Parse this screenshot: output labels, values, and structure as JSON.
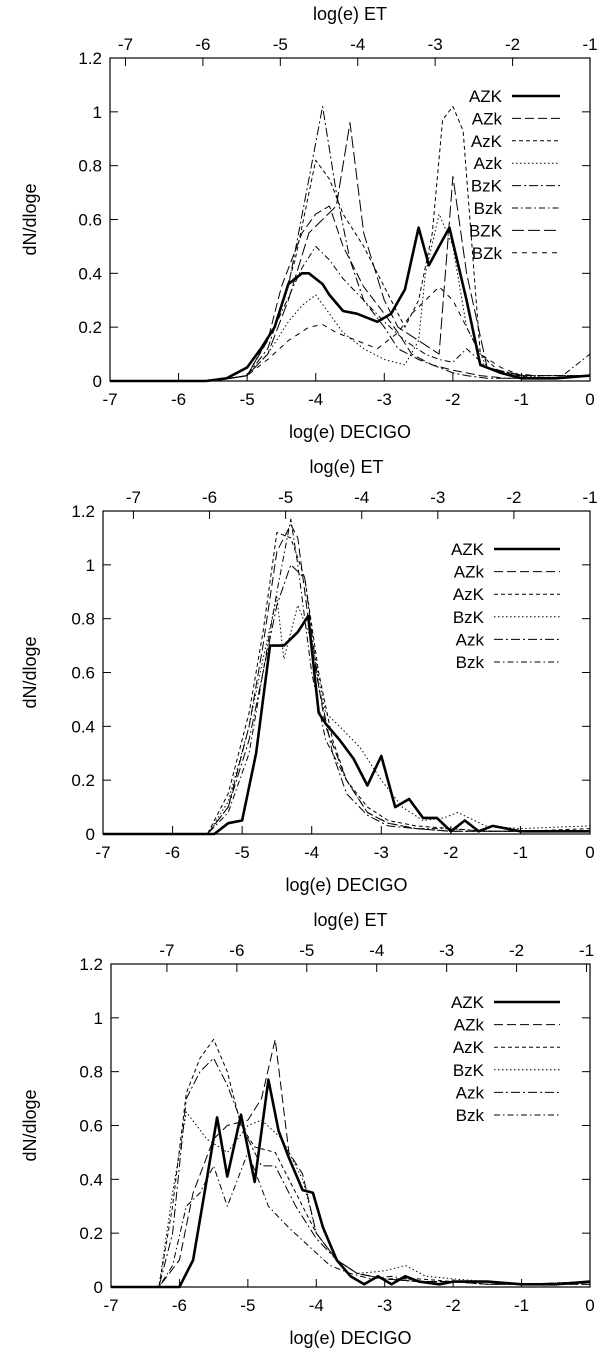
{
  "chart_data": [
    {
      "type": "line",
      "xlabel": "log(e) DECIGO",
      "x2label": "log(e) ET",
      "ylabel": "dN/dloge",
      "xlim": [
        -7,
        0
      ],
      "x2lim": [
        -7.2,
        -1
      ],
      "ylim": [
        0,
        1.2
      ],
      "xticks": [
        "-7",
        "-6",
        "-5",
        "-4",
        "-3",
        "-2",
        "-1",
        "0"
      ],
      "x2ticks": [
        "-7",
        "-6",
        "-5",
        "-4",
        "-3",
        "-2",
        "-1"
      ],
      "yticks": [
        "0",
        "0.2",
        "0.4",
        "0.6",
        "0.8",
        "1",
        "1.2"
      ],
      "grid": false,
      "legend": "top-right",
      "series": [
        {
          "name": "AZK",
          "x": [
            -7,
            -5.6,
            -5.3,
            -5.0,
            -4.8,
            -4.6,
            -4.4,
            -4.2,
            -4.1,
            -3.9,
            -3.8,
            -3.6,
            -3.4,
            -3.1,
            -2.9,
            -2.7,
            -2.5,
            -2.35,
            -2.2,
            -2.05,
            -1.8,
            -1.6,
            -1.3,
            -1.0,
            -0.5,
            0
          ],
          "y": [
            0,
            0,
            0.01,
            0.05,
            0.12,
            0.2,
            0.36,
            0.4,
            0.4,
            0.36,
            0.32,
            0.26,
            0.25,
            0.22,
            0.25,
            0.34,
            0.57,
            0.43,
            0.5,
            0.57,
            0.3,
            0.06,
            0.03,
            0.01,
            0.01,
            0.02
          ]
        },
        {
          "name": "AZk",
          "x": [
            -7,
            -5.5,
            -5.0,
            -4.7,
            -4.5,
            -4.2,
            -4.0,
            -3.8,
            -3.6,
            -3.3,
            -3.0,
            -2.8,
            -2.6,
            -2.3,
            -2.0,
            -1.6,
            -1.2,
            -0.5,
            0
          ],
          "y": [
            0,
            0,
            0.02,
            0.15,
            0.35,
            0.55,
            0.62,
            0.65,
            0.5,
            0.35,
            0.25,
            0.18,
            0.1,
            0.06,
            0.04,
            0.02,
            0.01,
            0.01,
            0.02
          ]
        },
        {
          "name": "AzK",
          "x": [
            -7,
            -5.5,
            -5.0,
            -4.6,
            -4.3,
            -4.0,
            -3.8,
            -3.6,
            -3.3,
            -3.0,
            -2.7,
            -2.5,
            -2.3,
            -2.15,
            -2.0,
            -1.85,
            -1.6,
            -1.3,
            -0.8,
            0
          ],
          "y": [
            0,
            0,
            0.02,
            0.2,
            0.45,
            0.82,
            0.75,
            0.62,
            0.5,
            0.35,
            0.2,
            0.3,
            0.55,
            0.97,
            1.02,
            0.93,
            0.1,
            0.03,
            0.01,
            0.02
          ]
        },
        {
          "name": "Azk",
          "x": [
            -7,
            -5.5,
            -5.0,
            -4.7,
            -4.4,
            -4.2,
            -4.0,
            -3.8,
            -3.6,
            -3.3,
            -3.0,
            -2.7,
            -2.5,
            -2.4,
            -2.2,
            -2.0,
            -1.8,
            -1.5,
            -1.0,
            -0.5,
            0
          ],
          "y": [
            0,
            0,
            0.02,
            0.1,
            0.22,
            0.28,
            0.32,
            0.25,
            0.18,
            0.12,
            0.08,
            0.06,
            0.15,
            0.4,
            0.62,
            0.5,
            0.2,
            0.05,
            0.02,
            0.01,
            0.02
          ]
        },
        {
          "name": "BzK",
          "x": [
            -7,
            -5.5,
            -5.0,
            -4.7,
            -4.4,
            -4.1,
            -3.9,
            -3.7,
            -3.5,
            -3.3,
            -3.0,
            -2.8,
            -2.5,
            -2.2,
            -2.0,
            -1.8,
            -1.5,
            -1.0,
            -0.5,
            0
          ],
          "y": [
            0,
            0,
            0.02,
            0.12,
            0.35,
            0.75,
            1.02,
            0.7,
            0.45,
            0.3,
            0.2,
            0.12,
            0.08,
            0.05,
            0.03,
            0.02,
            0.01,
            0.01,
            0.01,
            0.02
          ]
        },
        {
          "name": "Bzk",
          "x": [
            -7,
            -5.5,
            -5.0,
            -4.6,
            -4.2,
            -4.0,
            -3.8,
            -3.6,
            -3.3,
            -3.0,
            -2.7,
            -2.4,
            -2.2,
            -2.0,
            -1.8,
            -1.5,
            -1.2,
            -0.8,
            -0.4,
            0
          ],
          "y": [
            0,
            0,
            0.02,
            0.2,
            0.42,
            0.5,
            0.45,
            0.38,
            0.3,
            0.22,
            0.15,
            0.1,
            0.08,
            0.07,
            0.12,
            0.05,
            0.03,
            0.02,
            0.02,
            0.1
          ]
        },
        {
          "name": "BZK",
          "x": [
            -7,
            -5.5,
            -5.0,
            -4.7,
            -4.4,
            -4.1,
            -3.9,
            -3.7,
            -3.5,
            -3.3,
            -3.0,
            -2.8,
            -2.5,
            -2.2,
            -2.0,
            -1.8,
            -1.5,
            -1.0,
            0
          ],
          "y": [
            0,
            0,
            0.02,
            0.1,
            0.3,
            0.55,
            0.6,
            0.65,
            0.96,
            0.55,
            0.3,
            0.2,
            0.15,
            0.1,
            0.76,
            0.4,
            0.05,
            0.02,
            0.02
          ]
        },
        {
          "name": "BZk",
          "x": [
            -7,
            -5.5,
            -5.0,
            -4.7,
            -4.4,
            -4.1,
            -3.9,
            -3.7,
            -3.4,
            -3.1,
            -2.8,
            -2.6,
            -2.4,
            -2.2,
            -2.0,
            -1.8,
            -1.6,
            -1.3,
            -1.0,
            0
          ],
          "y": [
            0,
            0,
            0.02,
            0.08,
            0.15,
            0.2,
            0.21,
            0.18,
            0.15,
            0.12,
            0.18,
            0.25,
            0.3,
            0.35,
            0.3,
            0.2,
            0.1,
            0.05,
            0.02,
            0.02
          ]
        }
      ]
    },
    {
      "type": "line",
      "xlabel": "log(e) DECIGO",
      "x2label": "log(e) ET",
      "ylabel": "dN/dloge",
      "xlim": [
        -7,
        0
      ],
      "x2lim": [
        -7.4,
        -1
      ],
      "ylim": [
        0,
        1.2
      ],
      "xticks": [
        "-7",
        "-6",
        "-5",
        "-4",
        "-3",
        "-2",
        "-1",
        "0"
      ],
      "x2ticks": [
        "-7",
        "-6",
        "-5",
        "-4",
        "-3",
        "-2",
        "-1"
      ],
      "yticks": [
        "0",
        "0.2",
        "0.4",
        "0.6",
        "0.8",
        "1",
        "1.2"
      ],
      "grid": false,
      "legend": "top-right",
      "series": [
        {
          "name": "AZK",
          "x": [
            -7,
            -5.4,
            -5.2,
            -5.0,
            -4.8,
            -4.6,
            -4.4,
            -4.2,
            -4.05,
            -3.9,
            -3.8,
            -3.6,
            -3.4,
            -3.2,
            -3.0,
            -2.8,
            -2.6,
            -2.4,
            -2.2,
            -2.0,
            -1.8,
            -1.6,
            -1.4,
            -1.0,
            -0.5,
            0
          ],
          "y": [
            0,
            0,
            0.04,
            0.05,
            0.3,
            0.7,
            0.7,
            0.75,
            0.81,
            0.45,
            0.41,
            0.35,
            0.28,
            0.18,
            0.29,
            0.1,
            0.13,
            0.06,
            0.06,
            0.01,
            0.05,
            0.01,
            0.03,
            0.01,
            0.01,
            0.01
          ]
        },
        {
          "name": "AZk",
          "x": [
            -7,
            -5.5,
            -5.2,
            -4.9,
            -4.7,
            -4.5,
            -4.3,
            -4.2,
            -4.0,
            -3.8,
            -3.5,
            -3.2,
            -2.9,
            -2.5,
            -2.0,
            -1.5,
            -1.0,
            0
          ],
          "y": [
            0,
            0,
            0.1,
            0.4,
            0.7,
            1.05,
            1.15,
            1.1,
            0.7,
            0.4,
            0.2,
            0.08,
            0.04,
            0.02,
            0.01,
            0.01,
            0.01,
            0.01
          ]
        },
        {
          "name": "AzK",
          "x": [
            -7,
            -5.5,
            -5.2,
            -4.9,
            -4.7,
            -4.5,
            -4.3,
            -4.1,
            -3.9,
            -3.7,
            -3.5,
            -3.2,
            -2.9,
            -2.5,
            -2.0,
            -1.5,
            -1.0,
            0
          ],
          "y": [
            0,
            0,
            0.15,
            0.45,
            0.75,
            1.12,
            1.1,
            0.95,
            0.6,
            0.35,
            0.2,
            0.1,
            0.05,
            0.03,
            0.02,
            0.01,
            0.01,
            0.02
          ]
        },
        {
          "name": "BzK",
          "x": [
            -7,
            -5.5,
            -5.2,
            -4.9,
            -4.7,
            -4.5,
            -4.4,
            -4.2,
            -4.0,
            -3.8,
            -3.6,
            -3.3,
            -3.0,
            -2.7,
            -2.4,
            -2.1,
            -1.9,
            -1.5,
            -1.0,
            0
          ],
          "y": [
            0,
            0,
            0.12,
            0.4,
            0.65,
            0.88,
            0.65,
            0.85,
            0.72,
            0.45,
            0.4,
            0.32,
            0.2,
            0.1,
            0.05,
            0.06,
            0.08,
            0.03,
            0.02,
            0.03
          ]
        },
        {
          "name": "Azk",
          "x": [
            -7,
            -5.5,
            -5.2,
            -4.9,
            -4.7,
            -4.5,
            -4.3,
            -4.1,
            -3.9,
            -3.7,
            -3.5,
            -3.2,
            -2.9,
            -2.5,
            -2.0,
            -1.5,
            -1.0,
            0
          ],
          "y": [
            0,
            0,
            0.1,
            0.35,
            0.6,
            0.85,
            1.0,
            0.95,
            0.55,
            0.3,
            0.15,
            0.07,
            0.03,
            0.02,
            0.01,
            0.01,
            0.01,
            0.01
          ]
        },
        {
          "name": "Bzk",
          "x": [
            -7,
            -5.5,
            -5.2,
            -4.9,
            -4.7,
            -4.5,
            -4.3,
            -4.2,
            -4.0,
            -3.8,
            -3.5,
            -3.2,
            -2.9,
            -2.5,
            -2.0,
            -1.5,
            -1.0,
            0
          ],
          "y": [
            0,
            0,
            0.08,
            0.3,
            0.6,
            0.9,
            1.17,
            1.0,
            0.6,
            0.35,
            0.2,
            0.08,
            0.04,
            0.02,
            0.02,
            0.01,
            0.01,
            0.01
          ]
        }
      ]
    },
    {
      "type": "line",
      "xlabel": "log(e) DECIGO",
      "x2label": "log(e) ET",
      "ylabel": "dN/dloge",
      "xlim": [
        -7,
        0
      ],
      "x2lim": [
        -7.8,
        -0.95
      ],
      "ylim": [
        0,
        1.2
      ],
      "xticks": [
        "-7",
        "-6",
        "-5",
        "-4",
        "-3",
        "-2",
        "-1",
        "0"
      ],
      "x2ticks": [
        "-7",
        "-6",
        "-5",
        "-4",
        "-3",
        "-2",
        "-1"
      ],
      "yticks": [
        "0",
        "0.2",
        "0.4",
        "0.6",
        "0.8",
        "1",
        "1.2"
      ],
      "grid": false,
      "legend": "top-right",
      "series": [
        {
          "name": "AZK",
          "x": [
            -7,
            -6.0,
            -5.8,
            -5.6,
            -5.45,
            -5.3,
            -5.1,
            -4.9,
            -4.7,
            -4.55,
            -4.4,
            -4.2,
            -4.05,
            -3.9,
            -3.7,
            -3.5,
            -3.3,
            -3.1,
            -2.9,
            -2.7,
            -2.5,
            -2.2,
            -2.0,
            -1.5,
            -1.0,
            -0.5,
            0
          ],
          "y": [
            0,
            0,
            0.1,
            0.4,
            0.63,
            0.41,
            0.64,
            0.39,
            0.77,
            0.58,
            0.48,
            0.36,
            0.35,
            0.22,
            0.1,
            0.04,
            0.01,
            0.04,
            0.01,
            0.04,
            0.02,
            0.01,
            0.02,
            0.02,
            0.01,
            0.01,
            0.02
          ]
        },
        {
          "name": "AZk",
          "x": [
            -7,
            -6.3,
            -6.0,
            -5.8,
            -5.5,
            -5.3,
            -5.0,
            -4.8,
            -4.6,
            -4.4,
            -4.2,
            -4.0,
            -3.7,
            -3.4,
            -3.0,
            -2.5,
            -2.0,
            -1.5,
            -1.0,
            0
          ],
          "y": [
            0,
            0,
            0.1,
            0.35,
            0.55,
            0.6,
            0.62,
            0.7,
            0.92,
            0.5,
            0.42,
            0.2,
            0.1,
            0.05,
            0.03,
            0.02,
            0.02,
            0.01,
            0.01,
            0.01
          ]
        },
        {
          "name": "AzK",
          "x": [
            -7,
            -6.3,
            -6.1,
            -5.9,
            -5.7,
            -5.5,
            -5.3,
            -5.1,
            -4.9,
            -4.6,
            -4.3,
            -4.0,
            -3.7,
            -3.4,
            -3.0,
            -2.5,
            -2.0,
            -1.5,
            -1.0,
            0
          ],
          "y": [
            0,
            0,
            0.3,
            0.72,
            0.85,
            0.92,
            0.8,
            0.6,
            0.52,
            0.5,
            0.35,
            0.2,
            0.1,
            0.05,
            0.03,
            0.03,
            0.02,
            0.01,
            0.01,
            0.02
          ]
        },
        {
          "name": "BzK",
          "x": [
            -7,
            -6.3,
            -6.1,
            -5.9,
            -5.6,
            -5.3,
            -5.0,
            -4.8,
            -4.5,
            -4.2,
            -4.0,
            -3.7,
            -3.4,
            -3.0,
            -2.7,
            -2.4,
            -2.0,
            -1.5,
            -1.0,
            0
          ],
          "y": [
            0,
            0,
            0.35,
            0.65,
            0.55,
            0.5,
            0.6,
            0.62,
            0.55,
            0.4,
            0.2,
            0.1,
            0.05,
            0.06,
            0.08,
            0.04,
            0.03,
            0.02,
            0.01,
            0.02
          ]
        },
        {
          "name": "Azk",
          "x": [
            -7,
            -6.3,
            -6.1,
            -5.9,
            -5.7,
            -5.5,
            -5.3,
            -5.0,
            -4.8,
            -4.6,
            -4.3,
            -4.0,
            -3.7,
            -3.4,
            -3.0,
            -2.5,
            -2.0,
            -1.5,
            -1.0,
            0
          ],
          "y": [
            0,
            0,
            0.2,
            0.7,
            0.8,
            0.85,
            0.75,
            0.55,
            0.45,
            0.45,
            0.3,
            0.18,
            0.1,
            0.05,
            0.03,
            0.02,
            0.02,
            0.01,
            0.01,
            0.01
          ]
        },
        {
          "name": "Bzk",
          "x": [
            -7,
            -6.3,
            -6.1,
            -5.9,
            -5.7,
            -5.5,
            -5.3,
            -5.0,
            -4.7,
            -4.4,
            -4.1,
            -3.8,
            -3.5,
            -3.2,
            -2.9,
            -2.5,
            -2.0,
            -1.5,
            -1.0,
            0
          ],
          "y": [
            0,
            0,
            0.08,
            0.3,
            0.35,
            0.45,
            0.3,
            0.5,
            0.3,
            0.22,
            0.15,
            0.08,
            0.05,
            0.03,
            0.04,
            0.02,
            0.02,
            0.02,
            0.01,
            0.02
          ]
        }
      ]
    }
  ]
}
